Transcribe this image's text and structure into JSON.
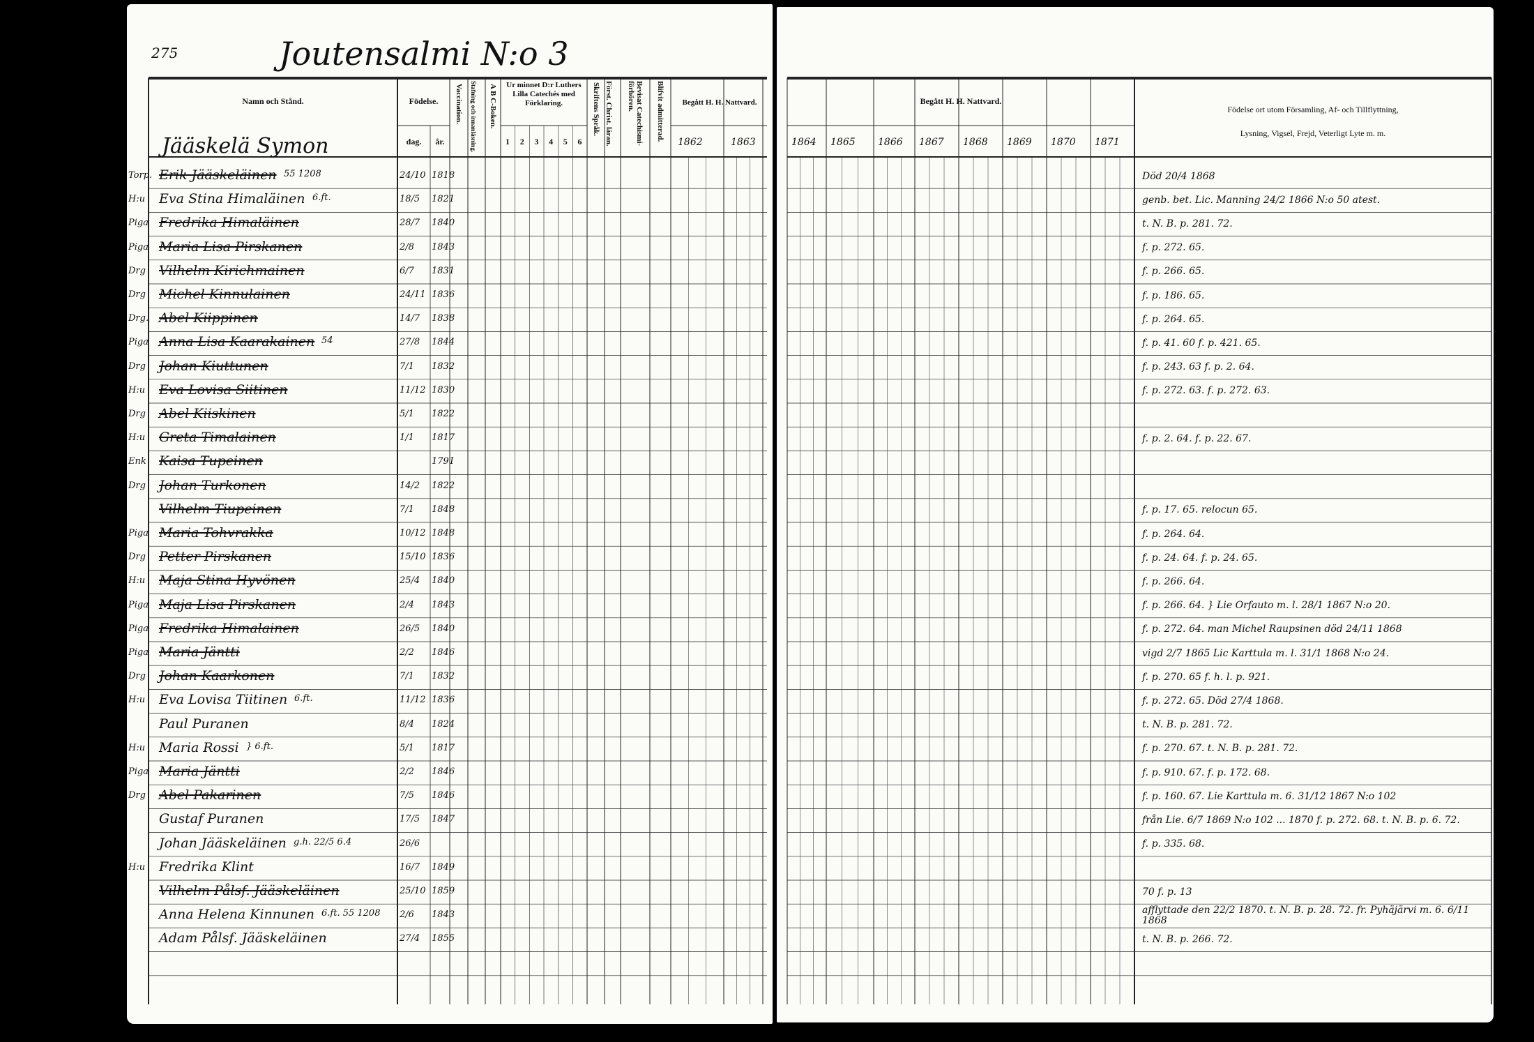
{
  "page_number": "275",
  "parish_title": "Joutensalmi N:o 3",
  "household_head": "Jääskelä Symon",
  "headers": {
    "name": "Namn och Stånd.",
    "birth": "Födelse.",
    "day": "dag.",
    "year": "år.",
    "vaccination": "Vaccination.",
    "spelling": "Stafning och innanläsning.",
    "abc": "A B C-Boken.",
    "catechism": "Ur minnet D:r Luthers Lilla Catechés med Förklaring.",
    "catechism_parts": [
      "1",
      "2",
      "3",
      "4",
      "5",
      "6"
    ],
    "scripture": "Skriftens Språk.",
    "christ": "Först. Christ. läran.",
    "hearing": "Bevisat Catechismi-förhören.",
    "admitted": "Blifvit admitterad.",
    "communion": "Begått H. H. Nattvard.",
    "years_left": [
      "1862",
      "1863"
    ],
    "years_right": [
      "1864",
      "1865",
      "1866",
      "1867",
      "1868",
      "1869",
      "1870",
      "1871"
    ],
    "notes_line1": "Födelse ort utom Församling, Af- och Tillflyttning,",
    "notes_line2": "Lysning, Vigsel, Frejd, Veterligt Lyte m. m."
  },
  "rows": [
    {
      "prefix": "Torp.",
      "name": "Erik Jääskeläinen",
      "struck": true,
      "extra": "55 1208",
      "day": "24/10",
      "year": "1818"
    },
    {
      "prefix": "H:u",
      "name": "Eva Stina Himaläinen",
      "struck": false,
      "extra": "6.ft.",
      "day": "18/5",
      "year": "1821"
    },
    {
      "prefix": "Piga",
      "name": "Fredrika Himaläinen",
      "struck": true,
      "extra": "",
      "day": "28/7",
      "year": "1840"
    },
    {
      "prefix": "Piga",
      "name": "Maria Lisa Pirskanen",
      "struck": true,
      "extra": "",
      "day": "2/8",
      "year": "1843"
    },
    {
      "prefix": "Drg",
      "name": "Vilhelm Kirichmainen",
      "struck": true,
      "extra": "",
      "day": "6/7",
      "year": "1831"
    },
    {
      "prefix": "Drg",
      "name": "Michel Kinnulainen",
      "struck": true,
      "extra": "",
      "day": "24/11",
      "year": "1836"
    },
    {
      "prefix": "Drg.",
      "name": "Abel Kiippinen",
      "struck": true,
      "extra": "",
      "day": "14/7",
      "year": "1838"
    },
    {
      "prefix": "Piga",
      "name": "Anna Lisa Kaarakainen",
      "struck": true,
      "extra": "54",
      "day": "27/8",
      "year": "1844"
    },
    {
      "prefix": "Drg",
      "name": "Johan Kiuttunen",
      "struck": true,
      "extra": "",
      "day": "7/1",
      "year": "1832"
    },
    {
      "prefix": "H:u",
      "name": "Eva Lovisa Siitinen",
      "struck": true,
      "extra": "",
      "day": "11/12",
      "year": "1830"
    },
    {
      "prefix": "Drg",
      "name": "Abel Kiiskinen",
      "struck": true,
      "extra": "",
      "day": "5/1",
      "year": "1822"
    },
    {
      "prefix": "H:u",
      "name": "Greta Timalainen",
      "struck": true,
      "extra": "",
      "day": "1/1",
      "year": "1817"
    },
    {
      "prefix": "Enk",
      "name": "Kaisa Tupeinen",
      "struck": true,
      "extra": "",
      "day": "",
      "year": "1791"
    },
    {
      "prefix": "Drg",
      "name": "Johan Turkonen",
      "struck": true,
      "extra": "",
      "day": "14/2",
      "year": "1822"
    },
    {
      "prefix": "",
      "name": "Vilhelm Tiupeinen",
      "struck": true,
      "extra": "",
      "day": "7/1",
      "year": "1848"
    },
    {
      "prefix": "Piga",
      "name": "Maria Tohvrakka",
      "struck": true,
      "extra": "",
      "day": "10/12",
      "year": "1848"
    },
    {
      "prefix": "Drg",
      "name": "Petter Pirskanen",
      "struck": true,
      "extra": "",
      "day": "15/10",
      "year": "1836"
    },
    {
      "prefix": "H:u",
      "name": "Maja Stina Hyvönen",
      "struck": true,
      "extra": "",
      "day": "25/4",
      "year": "1840"
    },
    {
      "prefix": "Piga",
      "name": "Maja Lisa Pirskanen",
      "struck": true,
      "extra": "",
      "day": "2/4",
      "year": "1843"
    },
    {
      "prefix": "Piga",
      "name": "Fredrika Himalainen",
      "struck": true,
      "extra": "",
      "day": "26/5",
      "year": "1840"
    },
    {
      "prefix": "Piga",
      "name": "Maria Jäntti",
      "struck": true,
      "extra": "",
      "day": "2/2",
      "year": "1846"
    },
    {
      "prefix": "Drg",
      "name": "Johan Kaarkonen",
      "struck": true,
      "extra": "",
      "day": "7/1",
      "year": "1832"
    },
    {
      "prefix": "H:u",
      "name": "Eva Lovisa Tiitinen",
      "struck": false,
      "extra": "6.ft.",
      "day": "11/12",
      "year": "1836"
    },
    {
      "prefix": "",
      "name": "Paul Puranen",
      "struck": false,
      "extra": "",
      "day": "8/4",
      "year": "1824"
    },
    {
      "prefix": "H:u",
      "name": "Maria Rossi",
      "struck": false,
      "extra": "} 6.ft.",
      "day": "5/1",
      "year": "1817"
    },
    {
      "prefix": "Piga",
      "name": "Maria Jäntti",
      "struck": true,
      "extra": "",
      "day": "2/2",
      "year": "1846"
    },
    {
      "prefix": "Drg",
      "name": "Abel Pakarinen",
      "struck": true,
      "extra": "",
      "day": "7/5",
      "year": "1846"
    },
    {
      "prefix": "",
      "name": "Gustaf Puranen",
      "struck": false,
      "extra": "",
      "day": "17/5",
      "year": "1847"
    },
    {
      "prefix": "",
      "name": "Johan Jääskeläinen",
      "struck": false,
      "extra": "g.h. 22/5 6.4",
      "day": "26/6",
      "year": ""
    },
    {
      "prefix": "H:u",
      "name": "Fredrika Klint",
      "struck": false,
      "extra": "",
      "day": "16/7",
      "year": "1849"
    },
    {
      "prefix": "",
      "name": "Vilhelm Pålsf. Jääskeläinen",
      "struck": true,
      "extra": "",
      "day": "25/10",
      "year": "1859"
    },
    {
      "prefix": "",
      "name": "Anna Helena Kinnunen",
      "struck": false,
      "extra": "6.ft. 55 1208",
      "day": "2/6",
      "year": "1843"
    },
    {
      "prefix": "",
      "name": "Adam Pålsf. Jääskeläinen",
      "struck": false,
      "extra": "",
      "day": "27/4",
      "year": "1855"
    }
  ],
  "notes": [
    {
      "row": 0,
      "text": "Död 20/4 1868"
    },
    {
      "row": 1,
      "text": "genb. bet. Lic. Manning 24/2 1866 N:o 50 atest."
    },
    {
      "row": 2,
      "text": "t. N. B. p. 281. 72."
    },
    {
      "row": 3,
      "text": "f. p. 272. 65."
    },
    {
      "row": 4,
      "text": "f. p. 266. 65."
    },
    {
      "row": 5,
      "text": "f. p. 186. 65."
    },
    {
      "row": 6,
      "text": "f. p. 264. 65."
    },
    {
      "row": 7,
      "text": "f. p. 41. 60  f. p. 421. 65."
    },
    {
      "row": 8,
      "text": "f. p. 243. 63  f. p. 2. 64."
    },
    {
      "row": 9,
      "text": "f. p. 272. 63.  f. p. 272. 63."
    },
    {
      "row": 11,
      "text": "f. p. 2. 64.  f. p. 22. 67."
    },
    {
      "row": 14,
      "text": "f. p. 17. 65.  relocun 65."
    },
    {
      "row": 15,
      "text": "f. p. 264. 64."
    },
    {
      "row": 16,
      "text": "f. p. 24. 64.  f. p. 24. 65."
    },
    {
      "row": 17,
      "text": "f. p. 266. 64."
    },
    {
      "row": 18,
      "text": "f. p. 266. 64.  } Lie Orfauto m. l. 28/1 1867 N:o 20."
    },
    {
      "row": 19,
      "text": "f. p. 272. 64.  man Michel Raupsinen död 24/11 1868"
    },
    {
      "row": 20,
      "text": "vigd 2/7 1865 Lic Karttula m. l. 31/1 1868 N:o 24."
    },
    {
      "row": 21,
      "text": "f. p. 270. 65   f. h. l. p. 921."
    },
    {
      "row": 22,
      "text": "f. p. 272. 65.  Död 27/4 1868."
    },
    {
      "row": 23,
      "text": "t. N. B. p. 281. 72."
    },
    {
      "row": 24,
      "text": "f. p. 270. 67.  t. N. B. p. 281. 72."
    },
    {
      "row": 25,
      "text": "f. p. 910. 67.  f. p. 172. 68."
    },
    {
      "row": 26,
      "text": "f. p. 160. 67.  Lie Karttula m. 6. 31/12 1867 N:o 102"
    },
    {
      "row": 27,
      "text": "från Lie. 6/7 1869 N:o 102 ... 1870  f. p. 272. 68. t. N. B. p. 6. 72."
    },
    {
      "row": 28,
      "text": "f. p. 335. 68."
    },
    {
      "row": 30,
      "text": "70 f. p. 13"
    },
    {
      "row": 31,
      "text": "afflyttade den 22/2 1870. t. N. B. p. 28. 72.  fr. Pyhäjärvi m. 6. 6/11 1868"
    },
    {
      "row": 32,
      "text": "t. N. B. p. 266. 72."
    }
  ]
}
